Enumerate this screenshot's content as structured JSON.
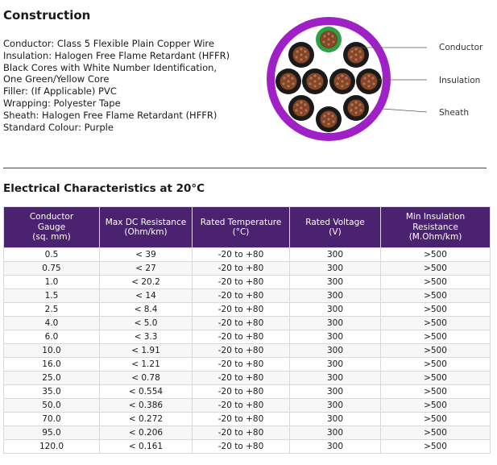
{
  "construction": {
    "title": "Construction",
    "lines": [
      "Conductor: Class 5 Flexible Plain Copper Wire",
      "Insulation: Halogen Free Flame Retardant (HFFR)",
      "Black Cores with White Number Identification,",
      "One Green/Yellow Core",
      "Filler: (If Applicable) PVC",
      "Wrapping: Polyester Tape",
      "Sheath: Halogen Free Flame Retardant (HFFR)",
      "Standard Colour: Purple"
    ]
  },
  "diagram": {
    "labels": {
      "conductor": "Conductor",
      "insulation": "Insulation",
      "sheath": "Sheath"
    },
    "colors": {
      "sheath": "#a020c8",
      "core": "#1a1a1a",
      "copper": "#8a4a2a",
      "earth_core": "#2ea043"
    }
  },
  "electrical": {
    "title": "Electrical Characteristics at 20°C",
    "columns": [
      "Conductor\nGauge\n(sq. mm)",
      "Max DC Resistance\n(Ohm/km)",
      "Rated Temperature\n(°C)",
      "Rated Voltage\n(V)",
      "Min Insulation Resistance\n(M.Ohm/km)"
    ],
    "rows": [
      [
        "0.5",
        "< 39",
        "-20 to +80",
        "300",
        ">500"
      ],
      [
        "0.75",
        "< 27",
        "-20 to +80",
        "300",
        ">500"
      ],
      [
        "1.0",
        "< 20.2",
        "-20 to +80",
        "300",
        ">500"
      ],
      [
        "1.5",
        "< 14",
        "-20 to +80",
        "300",
        ">500"
      ],
      [
        "2.5",
        "< 8.4",
        "-20 to +80",
        "300",
        ">500"
      ],
      [
        "4.0",
        "< 5.0",
        "-20 to +80",
        "300",
        ">500"
      ],
      [
        "6.0",
        "< 3.3",
        "-20 to +80",
        "300",
        ">500"
      ],
      [
        "10.0",
        "< 1.91",
        "-20 to +80",
        "300",
        ">500"
      ],
      [
        "16.0",
        "< 1.21",
        "-20 to +80",
        "300",
        ">500"
      ],
      [
        "25.0",
        "< 0.78",
        "-20 to +80",
        "300",
        ">500"
      ],
      [
        "35.0",
        "< 0.554",
        "-20 to +80",
        "300",
        ">500"
      ],
      [
        "50.0",
        "< 0.386",
        "-20 to +80",
        "300",
        ">500"
      ],
      [
        "70.0",
        "< 0.272",
        "-20 to +80",
        "300",
        ">500"
      ],
      [
        "95.0",
        "< 0.206",
        "-20 to +80",
        "300",
        ">500"
      ],
      [
        "120.0",
        "< 0.161",
        "-20 to +80",
        "300",
        ">500"
      ]
    ]
  }
}
